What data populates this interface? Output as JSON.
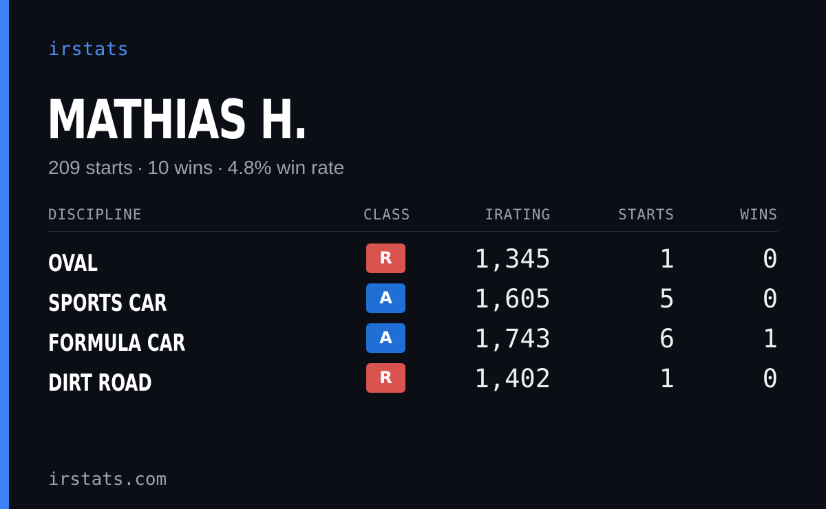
{
  "brand": "irstats",
  "player": {
    "name": "MATHIAS H."
  },
  "summary": {
    "starts": "209 starts",
    "wins": "10 wins",
    "win_rate": "4.8% win rate",
    "separator": "·"
  },
  "table": {
    "headers": {
      "discipline": "DISCIPLINE",
      "class": "CLASS",
      "irating": "IRATING",
      "starts": "STARTS",
      "wins": "WINS"
    },
    "rows": [
      {
        "discipline": "OVAL",
        "class": "R",
        "class_color": "#d9534f",
        "irating": "1,345",
        "starts": "1",
        "wins": "0"
      },
      {
        "discipline": "SPORTS CAR",
        "class": "A",
        "class_color": "#1f6fd6",
        "irating": "1,605",
        "starts": "5",
        "wins": "0"
      },
      {
        "discipline": "FORMULA CAR",
        "class": "A",
        "class_color": "#1f6fd6",
        "irating": "1,743",
        "starts": "6",
        "wins": "1"
      },
      {
        "discipline": "DIRT ROAD",
        "class": "R",
        "class_color": "#d9534f",
        "irating": "1,402",
        "starts": "1",
        "wins": "0"
      }
    ]
  },
  "footer": {
    "url": "irstats.com"
  },
  "colors": {
    "background": "#0b0e15",
    "accent": "#3b82f6",
    "brand_text": "#4c8df6",
    "muted_text": "#9aa3b2",
    "class_r": "#d9534f",
    "class_a": "#1f6fd6"
  }
}
